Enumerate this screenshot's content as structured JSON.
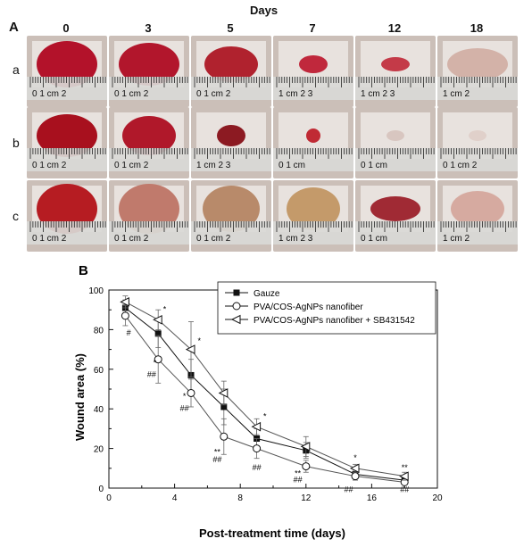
{
  "panelA": {
    "label": "A",
    "header": "Days",
    "days": [
      "0",
      "3",
      "5",
      "7",
      "12",
      "18"
    ],
    "rows": [
      {
        "label": "a",
        "scales": [
          "0    1 cm   2",
          "0    1 cm   2",
          "0    1 cm   2",
          "1 cm   2    3",
          "1 cm   2    3",
          "1 cm   2"
        ]
      },
      {
        "label": "b",
        "scales": [
          "0    1 cm   2",
          "0    1 cm   2",
          "1 cm   2    3",
          "0    1 cm",
          "0    1 cm",
          "0   1 cm   2"
        ]
      },
      {
        "label": "c",
        "scales": [
          "0    1 cm   2",
          "0    1 cm   2",
          "0    1 cm   2",
          "1 cm   2    3",
          "0    1 cm",
          "1 cm   2"
        ]
      }
    ]
  },
  "chart_data": {
    "type": "line",
    "panel_label": "B",
    "xlabel": "Post-treatment time (days)",
    "ylabel": "Wound area (%)",
    "xlim": [
      0,
      20
    ],
    "ylim": [
      0,
      100
    ],
    "xticks": [
      0,
      4,
      8,
      12,
      16,
      20
    ],
    "yticks": [
      0,
      20,
      40,
      60,
      80,
      100
    ],
    "series": [
      {
        "name": "Gauze",
        "marker": "square-filled",
        "x": [
          1,
          3,
          5,
          7,
          9,
          12,
          15,
          18
        ],
        "y": [
          91,
          78,
          57,
          41,
          25,
          19,
          7,
          4
        ],
        "err": [
          4,
          7,
          8,
          9,
          5,
          4,
          2,
          2
        ]
      },
      {
        "name": "PVA/COS-AgNPs nanofiber",
        "marker": "circle-open",
        "x": [
          1,
          3,
          5,
          7,
          9,
          12,
          15,
          18
        ],
        "y": [
          87,
          65,
          48,
          26,
          20,
          11,
          6,
          3
        ],
        "err": [
          5,
          12,
          7,
          9,
          5,
          3,
          2,
          1
        ]
      },
      {
        "name": "PVA/COS-AgNPs nanofiber + SB431542",
        "marker": "triangle-left-open",
        "x": [
          1,
          3,
          5,
          7,
          9,
          12,
          15,
          18
        ],
        "y": [
          94,
          85,
          70,
          48,
          31,
          21,
          10,
          6
        ],
        "err": [
          3,
          5,
          14,
          6,
          4,
          5,
          2,
          2
        ]
      }
    ],
    "annotations": [
      {
        "text": "#",
        "x": 1.2,
        "y": 77
      },
      {
        "text": "*",
        "x": 3.4,
        "y": 89
      },
      {
        "text": "*",
        "x": 2.8,
        "y": 62
      },
      {
        "text": "##",
        "x": 2.6,
        "y": 56
      },
      {
        "text": "*",
        "x": 5.5,
        "y": 73
      },
      {
        "text": "*",
        "x": 4.6,
        "y": 45
      },
      {
        "text": "##",
        "x": 4.6,
        "y": 39
      },
      {
        "text": "**",
        "x": 6.6,
        "y": 17
      },
      {
        "text": "##",
        "x": 6.6,
        "y": 13
      },
      {
        "text": "*",
        "x": 9.5,
        "y": 35
      },
      {
        "text": "##",
        "x": 9.0,
        "y": 9
      },
      {
        "text": "**",
        "x": 11.5,
        "y": 6
      },
      {
        "text": "##",
        "x": 11.5,
        "y": 3
      },
      {
        "text": "*",
        "x": 15.0,
        "y": 14
      },
      {
        "text": "##",
        "x": 14.6,
        "y": -2
      },
      {
        "text": "**",
        "x": 18.0,
        "y": 9
      },
      {
        "text": "##",
        "x": 18.0,
        "y": -2
      }
    ],
    "legend": "top-right",
    "grid": false
  }
}
